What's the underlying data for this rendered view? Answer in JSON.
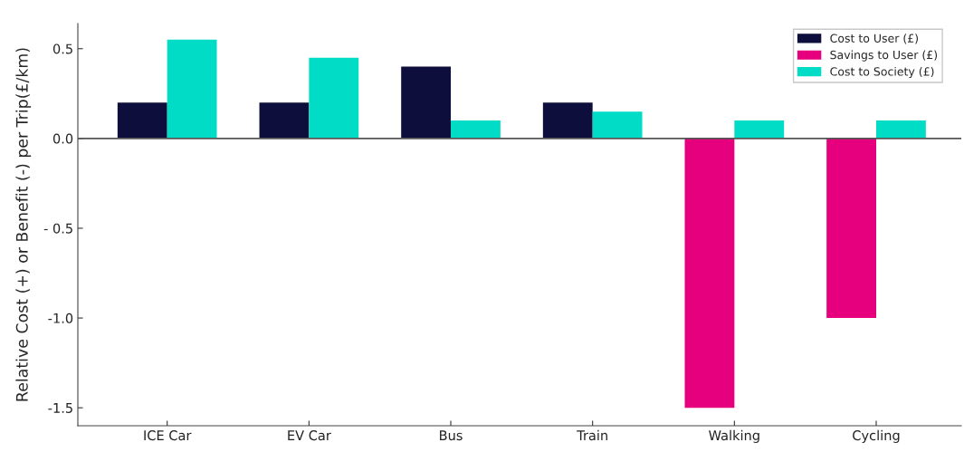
{
  "chart_data": {
    "type": "bar",
    "ylabel": "Relative Cost (+) or Benefit (-) per Trip(£/km)",
    "categories": [
      "ICE Car",
      "EV Car",
      "Bus",
      "Train",
      "Walking",
      "Cycling"
    ],
    "series": [
      {
        "name": "Cost to User (£)",
        "color": "#0e0e3d",
        "values": [
          0.2,
          0.2,
          0.4,
          0.2,
          null,
          null
        ]
      },
      {
        "name": "Savings to User (£)",
        "color": "#e6007e",
        "values": [
          null,
          null,
          null,
          null,
          -1.5,
          -1.0
        ]
      },
      {
        "name": "Cost to Society (£)",
        "color": "#00dcc5",
        "values": [
          0.55,
          0.45,
          0.1,
          0.15,
          0.1,
          0.1
        ]
      }
    ],
    "ylim": [
      -1.6,
      0.64
    ],
    "yticks": [
      0.5,
      {
        "value": 0.0,
        "label": "0.0"
      },
      {
        "value": -0.5,
        "label": "- 0.5"
      },
      {
        "value": -1.0,
        "label": "-1.0"
      },
      {
        "value": -1.5,
        "label": "-1.5"
      }
    ],
    "ref_lines": [
      {
        "axis": "y",
        "value": 0,
        "color": "#555555"
      }
    ],
    "legend": "top right",
    "grid": false
  }
}
